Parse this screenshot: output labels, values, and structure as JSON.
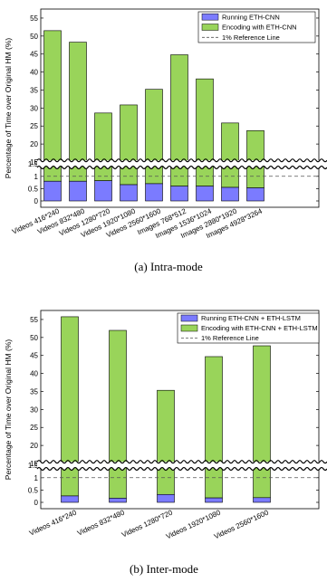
{
  "chart_data": [
    {
      "type": "bar",
      "stacked": true,
      "caption": "(a) Intra-mode",
      "ylabel": "Percentage of Time over Original HM (%)",
      "categories": [
        "Videos 416*240",
        "Videos 832*480",
        "Videos 1280*720",
        "Videos 1920*1080",
        "Videos 2560*1600",
        "Images 768*512",
        "Images 1536*1024",
        "Images 2880*1920",
        "Images 4928*3264"
      ],
      "series": [
        {
          "name": "Running ETH-CNN",
          "color": "#7b7bff",
          "values": [
            0.8,
            0.8,
            0.82,
            0.66,
            0.7,
            0.6,
            0.6,
            0.55,
            0.53
          ]
        },
        {
          "name": "Encoding with ETH-CNN",
          "color": "#99d45a",
          "values": [
            50.7,
            47.5,
            27.8,
            30.2,
            34.5,
            44.2,
            37.5,
            25.3,
            23.2
          ]
        }
      ],
      "reference_line": {
        "name": "1% Reference Line",
        "value": 1
      },
      "axis_break": "between 1.5 and 15",
      "yticks": [
        "0",
        "0.5",
        "1",
        "1.5",
        "15",
        "20",
        "25",
        "30",
        "35",
        "40",
        "45",
        "50",
        "55"
      ],
      "legend_position": "top-right"
    },
    {
      "type": "bar",
      "stacked": true,
      "caption": "(b) Inter-mode",
      "ylabel": "Percentage of Time over Original HM (%)",
      "categories": [
        "Videos 416*240",
        "Videos 832*480",
        "Videos 1280*720",
        "Videos 1920*1080",
        "Videos 2560*1600"
      ],
      "series": [
        {
          "name": "Running ETH-CNN + ETH-LSTM",
          "color": "#7b7bff",
          "values": [
            0.26,
            0.17,
            0.32,
            0.18,
            0.19
          ]
        },
        {
          "name": "Encoding with ETH-CNN + ETH-LSTM",
          "color": "#99d45a",
          "values": [
            55.5,
            51.8,
            35.0,
            44.5,
            47.5
          ]
        }
      ],
      "reference_line": {
        "name": "1% Reference Line",
        "value": 1
      },
      "axis_break": "between 1.5 and 15",
      "yticks": [
        "0",
        "0.5",
        "1",
        "1.5",
        "15",
        "20",
        "25",
        "30",
        "35",
        "40",
        "45",
        "50",
        "55"
      ],
      "legend_position": "top-right"
    }
  ]
}
